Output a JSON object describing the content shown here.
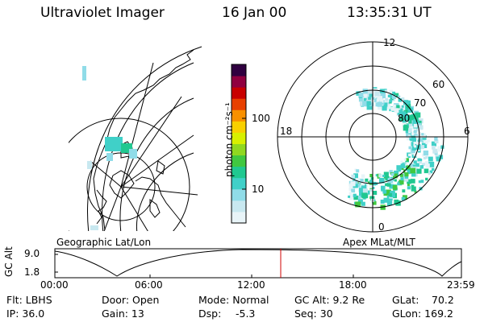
{
  "header": {
    "instrument": "Ultraviolet Imager",
    "date": "16 Jan 00",
    "time": "13:35:31 UT"
  },
  "colorbar": {
    "unit_label": "photon cm⁻²s⁻¹",
    "ticks": [
      "100",
      "10"
    ],
    "colors": [
      "#e8f4f8",
      "#c8e8f0",
      "#90dce8",
      "#40d0c8",
      "#20c890",
      "#40c840",
      "#90d820",
      "#d8f000",
      "#f8d000",
      "#f89000",
      "#e84000",
      "#c80000",
      "#900040",
      "#300040"
    ]
  },
  "geo_panel": {
    "label": "Geographic Lat/Lon"
  },
  "polar_panel": {
    "label": "Apex MLat/MLT",
    "mlt_labels": {
      "top": "12",
      "left": "18",
      "right": "6",
      "bottom": "0"
    },
    "lat_labels": [
      "60",
      "70",
      "80"
    ]
  },
  "timeline": {
    "ylabel": "GC Alt",
    "y_top": "9.0",
    "y_bottom": "1.8",
    "x_ticks": [
      "00:00",
      "06:00",
      "12:00",
      "18:00",
      "23:59"
    ],
    "marker_time": "13:35:31"
  },
  "status": {
    "flt": "Flt: LBHS",
    "ip": "IP: 36.0",
    "door": "Door: Open",
    "gain": "Gain: 13",
    "mode": "Mode: Normal",
    "dsp": "Dsp:",
    "dsp_val": "-5.3",
    "gcalt": "GC Alt: 9.2 Re",
    "seq": "Seq: 30",
    "glat": "GLat:",
    "glat_val": "70.2",
    "glon": "GLon: 169.2"
  }
}
